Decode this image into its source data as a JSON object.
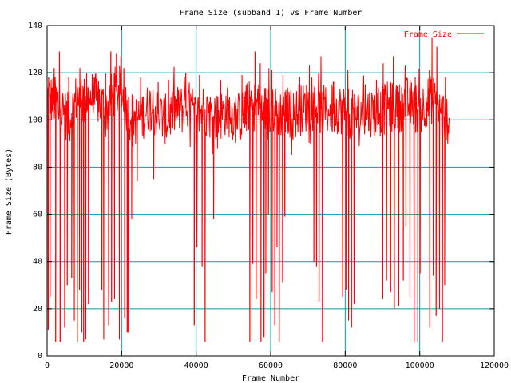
{
  "chart_data": {
    "type": "line",
    "title": "Frame Size (subband 1) vs Frame Number",
    "xlabel": "Frame Number",
    "ylabel": "Frame Size (Bytes)",
    "xlim": [
      0,
      120000
    ],
    "ylim": [
      0,
      140
    ],
    "xticks": [
      0,
      20000,
      40000,
      60000,
      80000,
      100000,
      120000
    ],
    "yticks": [
      0,
      20,
      40,
      60,
      80,
      100,
      120,
      140
    ],
    "grid": true,
    "legend_position": "top-right",
    "series": [
      {
        "name": "Frame Size",
        "color": "#ff0000",
        "x_range": [
          0,
          108000
        ],
        "baseline": [
          [
            0,
            110
          ],
          [
            2000,
            108
          ],
          [
            4000,
            104
          ],
          [
            6000,
            100
          ],
          [
            8000,
            110
          ],
          [
            10000,
            108
          ],
          [
            12000,
            110
          ],
          [
            14000,
            108
          ],
          [
            16000,
            104
          ],
          [
            18000,
            112
          ],
          [
            20000,
            112
          ],
          [
            22000,
            102
          ],
          [
            24000,
            100
          ],
          [
            26000,
            103
          ],
          [
            28000,
            106
          ],
          [
            30000,
            102
          ],
          [
            32000,
            100
          ],
          [
            34000,
            104
          ],
          [
            36000,
            104
          ],
          [
            38000,
            106
          ],
          [
            40000,
            101
          ],
          [
            42000,
            105
          ],
          [
            44000,
            102
          ],
          [
            46000,
            101
          ],
          [
            48000,
            104
          ],
          [
            50000,
            102
          ],
          [
            52000,
            101
          ],
          [
            54000,
            106
          ],
          [
            56000,
            106
          ],
          [
            58000,
            104
          ],
          [
            60000,
            106
          ],
          [
            62000,
            102
          ],
          [
            64000,
            104
          ],
          [
            66000,
            102
          ],
          [
            68000,
            104
          ],
          [
            70000,
            106
          ],
          [
            72000,
            106
          ],
          [
            74000,
            104
          ],
          [
            76000,
            104
          ],
          [
            78000,
            105
          ],
          [
            80000,
            104
          ],
          [
            82000,
            102
          ],
          [
            84000,
            102
          ],
          [
            86000,
            104
          ],
          [
            88000,
            103
          ],
          [
            90000,
            104
          ],
          [
            92000,
            106
          ],
          [
            94000,
            104
          ],
          [
            96000,
            108
          ],
          [
            98000,
            106
          ],
          [
            100000,
            104
          ],
          [
            102000,
            108
          ],
          [
            104000,
            108
          ],
          [
            106000,
            102
          ],
          [
            108000,
            100
          ]
        ],
        "spikes_low": [
          [
            300,
            11
          ],
          [
            800,
            25
          ],
          [
            2300,
            6
          ],
          [
            3500,
            6
          ],
          [
            4700,
            12
          ],
          [
            5400,
            30
          ],
          [
            6600,
            33
          ],
          [
            7300,
            15
          ],
          [
            8100,
            6
          ],
          [
            8700,
            28
          ],
          [
            9300,
            10
          ],
          [
            9800,
            6
          ],
          [
            10400,
            7
          ],
          [
            11100,
            22
          ],
          [
            14700,
            28
          ],
          [
            15200,
            7
          ],
          [
            16500,
            13
          ],
          [
            17300,
            23
          ],
          [
            18100,
            24
          ],
          [
            19400,
            7
          ],
          [
            20800,
            16
          ],
          [
            21500,
            10
          ],
          [
            21800,
            10
          ],
          [
            22700,
            58
          ],
          [
            24200,
            74
          ],
          [
            28600,
            75
          ],
          [
            39500,
            13
          ],
          [
            40200,
            46
          ],
          [
            41600,
            38
          ],
          [
            42400,
            6
          ],
          [
            44700,
            58
          ],
          [
            54400,
            6
          ],
          [
            55200,
            39
          ],
          [
            56100,
            24
          ],
          [
            57400,
            6
          ],
          [
            58200,
            8
          ],
          [
            58700,
            35
          ],
          [
            59400,
            60
          ],
          [
            60400,
            27
          ],
          [
            61100,
            13
          ],
          [
            61700,
            46
          ],
          [
            62300,
            6
          ],
          [
            63200,
            31
          ],
          [
            63800,
            59
          ],
          [
            71600,
            40
          ],
          [
            72300,
            38
          ],
          [
            73000,
            23
          ],
          [
            73900,
            6
          ],
          [
            79300,
            25
          ],
          [
            80200,
            28
          ],
          [
            80900,
            15
          ],
          [
            81700,
            12
          ],
          [
            82400,
            22
          ],
          [
            90100,
            24
          ],
          [
            91100,
            32
          ],
          [
            92200,
            27
          ],
          [
            93200,
            20
          ],
          [
            94400,
            21
          ],
          [
            95600,
            32
          ],
          [
            96300,
            55
          ],
          [
            97400,
            25
          ],
          [
            98500,
            6
          ],
          [
            99500,
            6
          ],
          [
            100100,
            35
          ],
          [
            102700,
            12
          ],
          [
            103600,
            34
          ],
          [
            104400,
            17
          ],
          [
            105300,
            20
          ],
          [
            106100,
            6
          ],
          [
            106700,
            30
          ]
        ],
        "spikes_high": [
          [
            400,
            118
          ],
          [
            1900,
            122
          ],
          [
            3300,
            129
          ],
          [
            5800,
            118
          ],
          [
            8800,
            122
          ],
          [
            10600,
            120
          ],
          [
            12900,
            116
          ],
          [
            15700,
            120
          ],
          [
            17100,
            129
          ],
          [
            18600,
            128
          ],
          [
            19800,
            127
          ],
          [
            20600,
            122
          ],
          [
            25100,
            118
          ],
          [
            29800,
            116
          ],
          [
            32600,
            117
          ],
          [
            37200,
            120
          ],
          [
            40900,
            119
          ],
          [
            46600,
            117
          ],
          [
            52300,
            119
          ],
          [
            55800,
            129
          ],
          [
            57200,
            124
          ],
          [
            60300,
            121
          ],
          [
            63300,
            119
          ],
          [
            67800,
            118
          ],
          [
            70400,
            123
          ],
          [
            73500,
            127
          ],
          [
            76800,
            116
          ],
          [
            80700,
            121
          ],
          [
            85400,
            115
          ],
          [
            88400,
            117
          ],
          [
            90200,
            124
          ],
          [
            92900,
            127
          ],
          [
            96100,
            123
          ],
          [
            98800,
            118
          ],
          [
            102600,
            121
          ],
          [
            103300,
            135
          ],
          [
            104600,
            131
          ],
          [
            106900,
            118
          ]
        ]
      }
    ]
  }
}
